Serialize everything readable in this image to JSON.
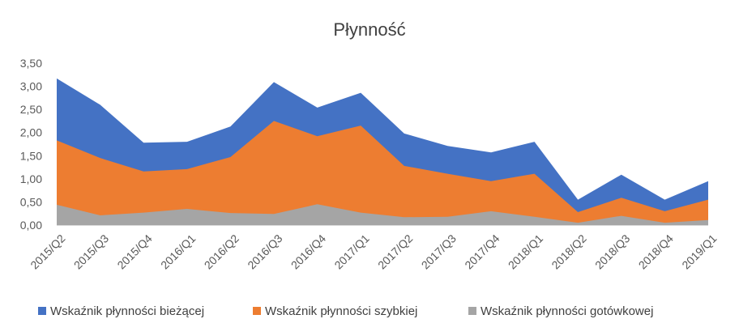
{
  "chart_data": {
    "type": "area",
    "stacked": false,
    "title": "Płynność",
    "xlabel": "",
    "ylabel": "",
    "categories": [
      "2015/Q2",
      "2015/Q3",
      "2015/Q4",
      "2016/Q1",
      "2016/Q2",
      "2016/Q3",
      "2016/Q4",
      "2017/Q1",
      "2017/Q2",
      "2017/Q3",
      "2017/Q4",
      "2018/Q1",
      "2018/Q2",
      "2018/Q3",
      "2018/Q4",
      "2019/Q1"
    ],
    "ylim": [
      0,
      3.5
    ],
    "yticks": [
      "0,00",
      "0,50",
      "1,00",
      "1,50",
      "2,00",
      "2,50",
      "3,00",
      "3,50"
    ],
    "ytick_values": [
      0,
      0.5,
      1.0,
      1.5,
      2.0,
      2.5,
      3.0,
      3.5
    ],
    "grid": false,
    "legend_position": "bottom",
    "series": [
      {
        "name": "Wskaźnik płynności bieżącej",
        "color": "#4472C4",
        "values": [
          3.17,
          2.6,
          1.78,
          1.8,
          2.13,
          3.09,
          2.54,
          2.86,
          1.98,
          1.71,
          1.57,
          1.8,
          0.55,
          1.09,
          0.55,
          0.95
        ]
      },
      {
        "name": "Wskaźnik płynności szybkiej",
        "color": "#ED7D31",
        "values": [
          1.83,
          1.45,
          1.16,
          1.21,
          1.47,
          2.25,
          1.92,
          2.15,
          1.28,
          1.11,
          0.95,
          1.11,
          0.28,
          0.59,
          0.3,
          0.55
        ]
      },
      {
        "name": "Wskaźnik płynności gotówkowej",
        "color": "#A5A5A5",
        "values": [
          0.44,
          0.21,
          0.27,
          0.35,
          0.26,
          0.24,
          0.45,
          0.27,
          0.17,
          0.18,
          0.3,
          0.18,
          0.05,
          0.2,
          0.05,
          0.11
        ]
      }
    ]
  }
}
